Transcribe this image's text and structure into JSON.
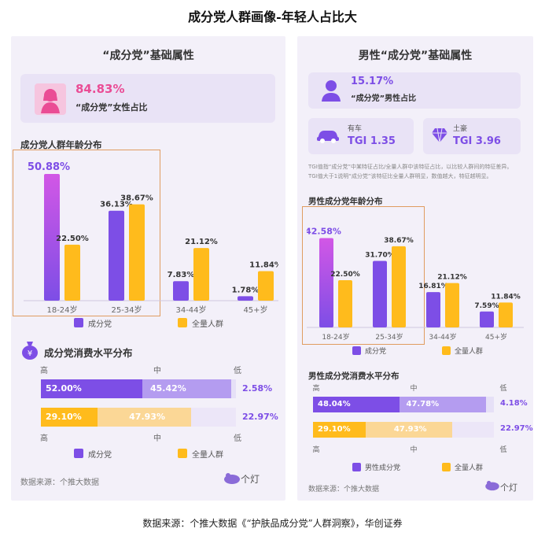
{
  "page_title": "成分党人群画像-年轻人占比大",
  "footer": "数据来源：个推大数据《“护肤品成分党”人群洞察》，华创证券",
  "colors": {
    "purple": "#7d4ee6",
    "purple_light": "#b49cf0",
    "orange": "#ffbb1c",
    "orange_light": "#fbd796",
    "lavender": "#e6e0f7",
    "panel_bg": "#f3f0f9"
  },
  "left": {
    "title": "“成分党”基础属性",
    "female_share": {
      "value": "84.83%",
      "label": "“成分党”女性占比",
      "icon": "female-avatar-icon"
    },
    "age_title": "成分党人群年龄分布",
    "consume_title": "成分党消费水平分布",
    "source": "数据来源：个推大数据",
    "logo": "个灯"
  },
  "right": {
    "title": "男性“成分党”基础属性",
    "male_share": {
      "value": "15.17%",
      "label": "“成分党”男性占比",
      "icon": "male-avatar-icon"
    },
    "tgi_car": {
      "label": "有车",
      "value": "TGI 1.35",
      "icon": "car-icon"
    },
    "tgi_rich": {
      "label": "土豪",
      "value": "TGI 3.96",
      "icon": "diamond-icon"
    },
    "note1": "TGI值指“成分党”中某特征占比/全量人群中该特征占比，以比较人群间的特征差异。",
    "note2": "TGI值大于1说明“成分党”该特征比全量人群明显，数值越大，特征越明显。",
    "age_title": "男性成分党年龄分布",
    "consume_title": "男性成分党消费水平分布",
    "source": "数据来源：个推大数据",
    "logo": "个灯"
  },
  "chart_data": [
    {
      "type": "bar",
      "title": "成分党人群年龄分布",
      "categories": [
        "18-24岁",
        "25-34岁",
        "34-44岁",
        "45+岁"
      ],
      "series": [
        {
          "name": "成分党",
          "values": [
            50.88,
            36.13,
            7.83,
            1.78
          ],
          "labels": [
            "50.88%",
            "36.13%",
            "7.83%",
            "1.78%"
          ]
        },
        {
          "name": "全量人群",
          "values": [
            22.5,
            38.67,
            21.12,
            11.84
          ],
          "labels": [
            "22.50%",
            "38.67%",
            "21.12%",
            "11.84%"
          ]
        }
      ],
      "ylim": [
        0,
        55
      ]
    },
    {
      "type": "bar",
      "title": "男性成分党年龄分布",
      "categories": [
        "18-24岁",
        "25-34岁",
        "34-44岁",
        "45+岁"
      ],
      "series": [
        {
          "name": "成分党",
          "values": [
            42.58,
            31.7,
            16.81,
            7.59
          ],
          "labels": [
            "42.58%",
            "31.70%",
            "16.81%",
            "7.59%"
          ]
        },
        {
          "name": "全量人群",
          "values": [
            22.5,
            38.67,
            21.12,
            11.84
          ],
          "labels": [
            "22.50%",
            "38.67%",
            "21.12%",
            "11.84%"
          ]
        }
      ],
      "ylim": [
        0,
        48
      ]
    },
    {
      "type": "bar",
      "stacked": true,
      "orientation": "horizontal",
      "title": "成分党消费水平分布",
      "axis_labels": [
        "高",
        "中",
        "低"
      ],
      "rows": [
        {
          "name": "成分党",
          "values": [
            52.0,
            45.42,
            2.58
          ],
          "labels": [
            "52.00%",
            "45.42%",
            "2.58%"
          ]
        },
        {
          "name": "全量人群",
          "values": [
            29.1,
            47.93,
            22.97
          ],
          "labels": [
            "29.10%",
            "47.93%",
            "22.97%"
          ]
        }
      ],
      "legend": [
        "成分党",
        "全量人群"
      ]
    },
    {
      "type": "bar",
      "stacked": true,
      "orientation": "horizontal",
      "title": "男性成分党消费水平分布",
      "axis_labels": [
        "高",
        "中",
        "低"
      ],
      "rows": [
        {
          "name": "男性成分党",
          "values": [
            48.04,
            47.78,
            4.18
          ],
          "labels": [
            "48.04%",
            "47.78%",
            "4.18%"
          ]
        },
        {
          "name": "全量人群",
          "values": [
            29.1,
            47.93,
            22.97
          ],
          "labels": [
            "29.10%",
            "47.93%",
            "22.97%"
          ]
        }
      ],
      "legend": [
        "男性成分党",
        "全量人群"
      ]
    }
  ]
}
